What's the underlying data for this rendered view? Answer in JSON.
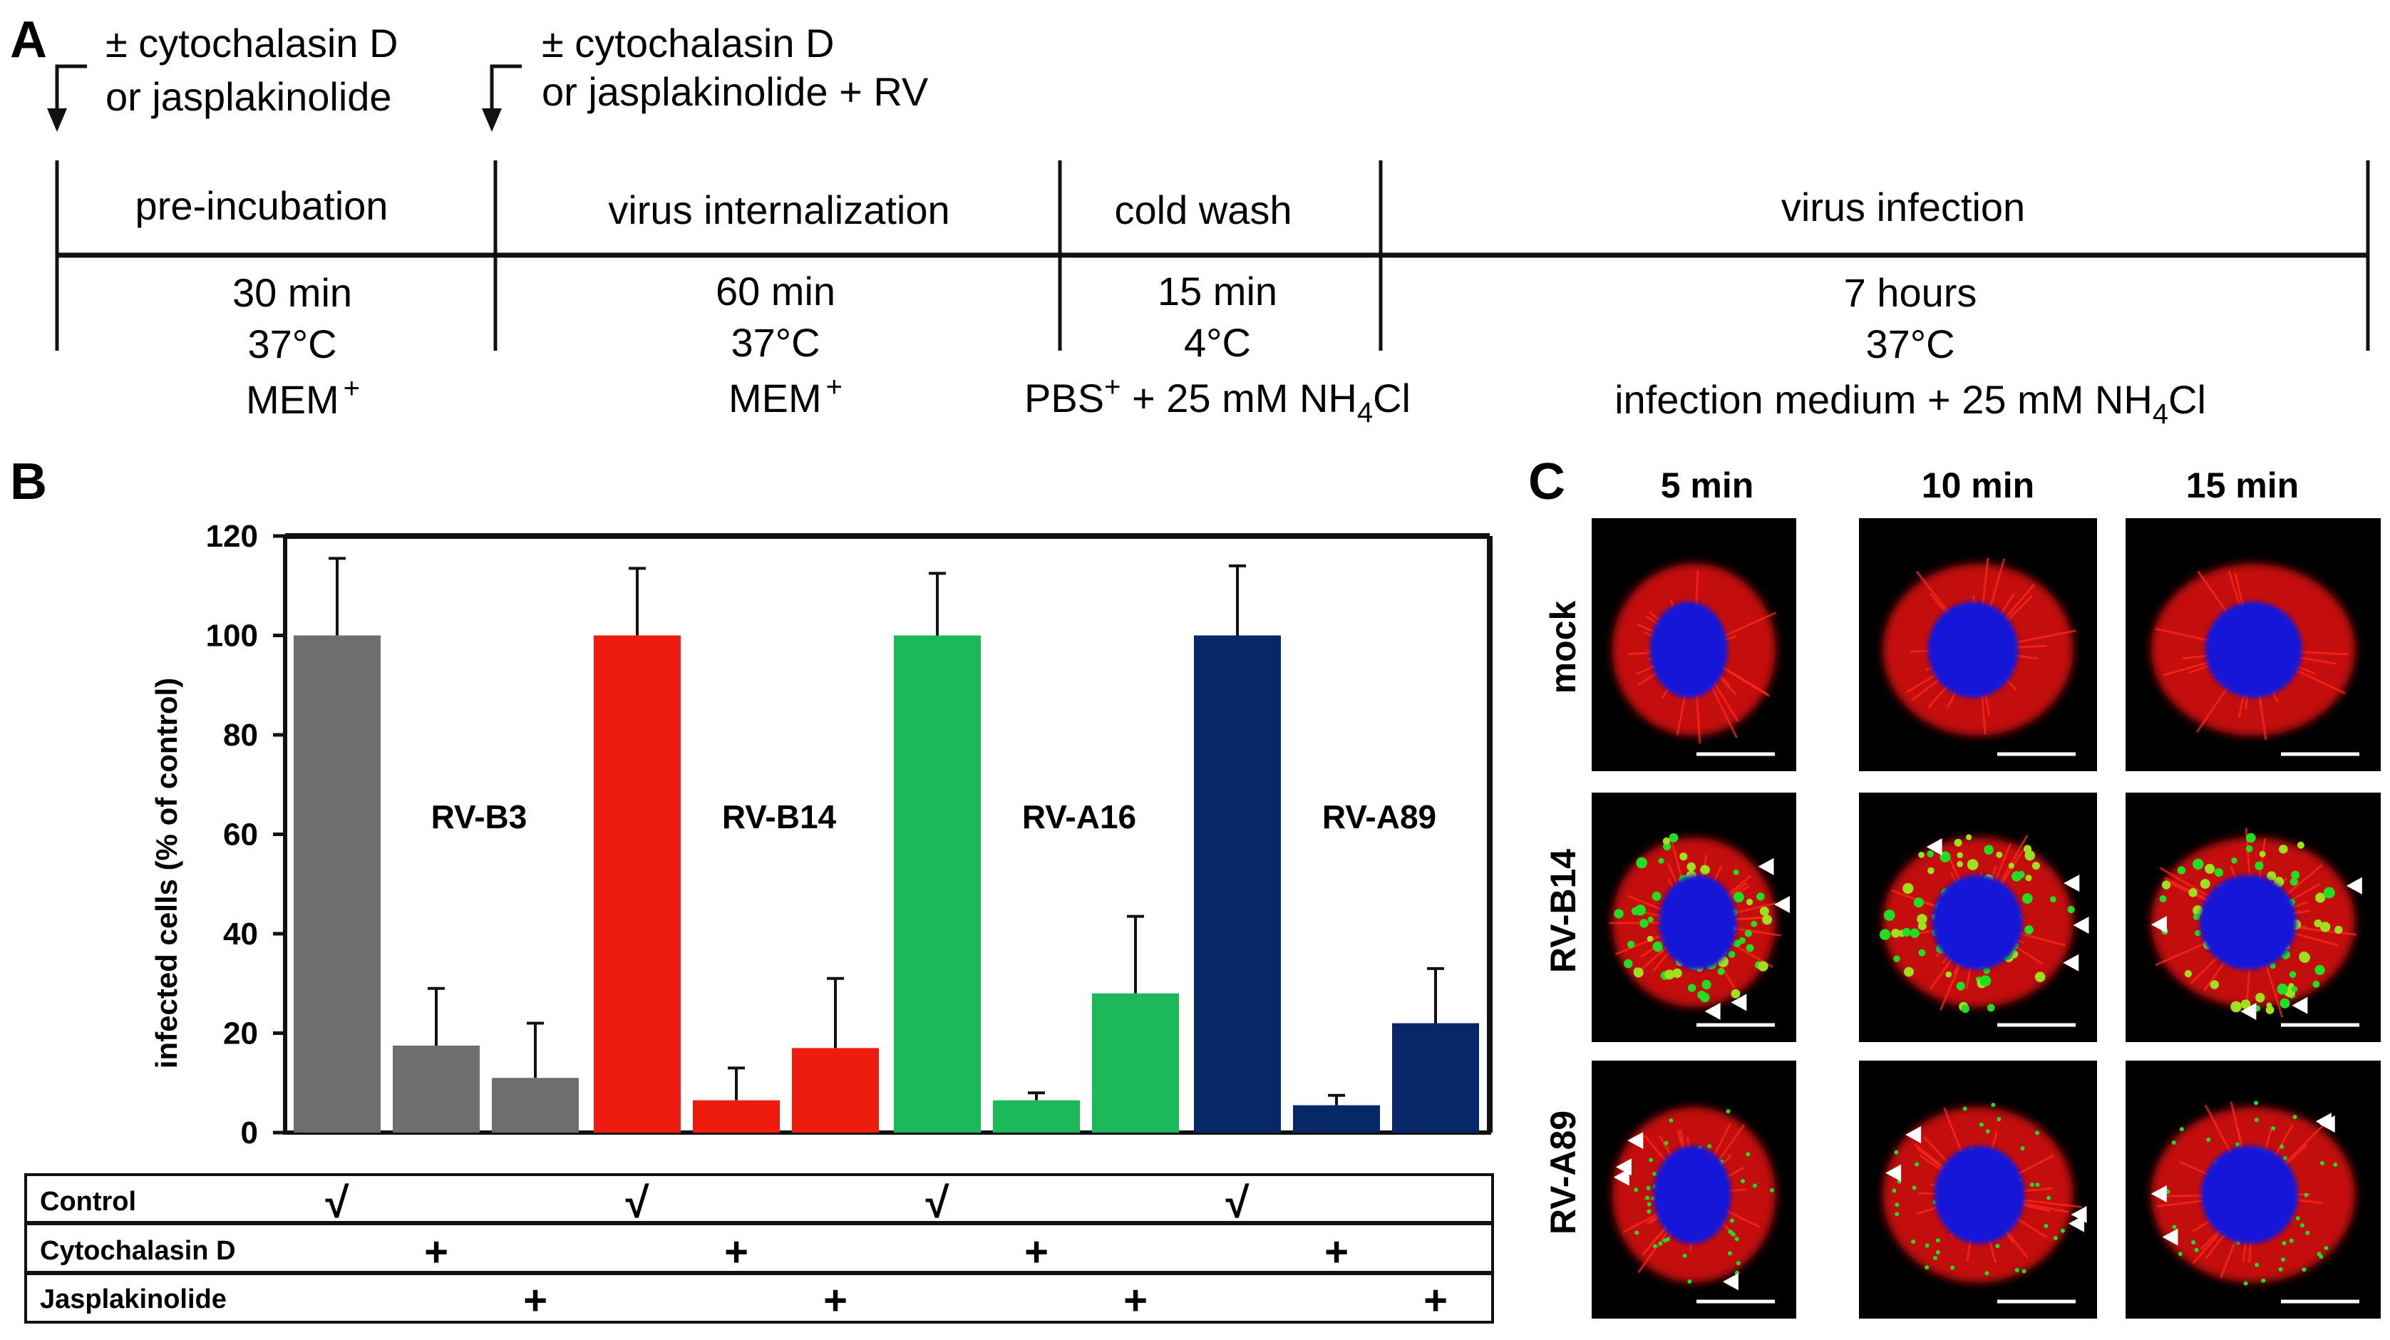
{
  "panelA": {
    "label": "A",
    "arrows": [
      {
        "line1": "± cytochalasin D",
        "line2": "or jasplakinolide"
      },
      {
        "line1": "± cytochalasin D",
        "line2": "or jasplakinolide + RV"
      }
    ],
    "phases": [
      {
        "name": "pre-incubation",
        "time": "30 min",
        "temp": "37°C",
        "medium": "MEM",
        "medium_sup": "+",
        "medium_tail": "",
        "medium_sub": "",
        "medium_end": ""
      },
      {
        "name": "virus internalization",
        "time": "60 min",
        "temp": "37°C",
        "medium": "MEM",
        "medium_sup": "+",
        "medium_tail": "",
        "medium_sub": "",
        "medium_end": ""
      },
      {
        "name": "cold wash",
        "time": "15 min",
        "temp": "4°C",
        "medium": "PBS",
        "medium_sup": "+",
        "medium_tail": " + 25 mM NH",
        "medium_sub": "4",
        "medium_end": "Cl"
      },
      {
        "name": "virus infection",
        "time": "7 hours",
        "temp": "37°C",
        "medium": "infection medium + 25 mM NH",
        "medium_sup": "",
        "medium_tail": "",
        "medium_sub": "4",
        "medium_end": "Cl"
      }
    ]
  },
  "panelB": {
    "label": "B",
    "chart_data": {
      "type": "bar",
      "ylabel": "infected cells (% of control)",
      "xlabel": "",
      "ylim": [
        0,
        120
      ],
      "yticks": [
        "0",
        "20",
        "40",
        "60",
        "80",
        "100",
        "120"
      ],
      "groups": [
        {
          "name": "RV-B3",
          "color": "#6e6e6e",
          "values": [
            100,
            17.5,
            11
          ],
          "errors": [
            15.5,
            11.5,
            11
          ]
        },
        {
          "name": "RV-B14",
          "color": "#ee1c0e",
          "values": [
            100,
            6.5,
            17
          ],
          "errors": [
            13.5,
            6.5,
            14
          ]
        },
        {
          "name": "RV-A16",
          "color": "#1cb85a",
          "values": [
            100,
            6.5,
            28
          ],
          "errors": [
            12.5,
            1.5,
            15.5
          ]
        },
        {
          "name": "RV-A89",
          "color": "#062868",
          "values": [
            100,
            5.5,
            22
          ],
          "errors": [
            14,
            2,
            11
          ]
        }
      ]
    },
    "table": {
      "rows": [
        {
          "label": "Control",
          "mark": "√",
          "col": 0
        },
        {
          "label": "Cytochalasin D",
          "mark": "+",
          "col": 1
        },
        {
          "label": "Jasplakinolide",
          "mark": "+",
          "col": 2
        }
      ]
    }
  },
  "panelC": {
    "label": "C",
    "col_headers": [
      "5 min",
      "10 min",
      "15 min"
    ],
    "row_headers": [
      "mock",
      "RV-B14",
      "RV-A89"
    ]
  }
}
